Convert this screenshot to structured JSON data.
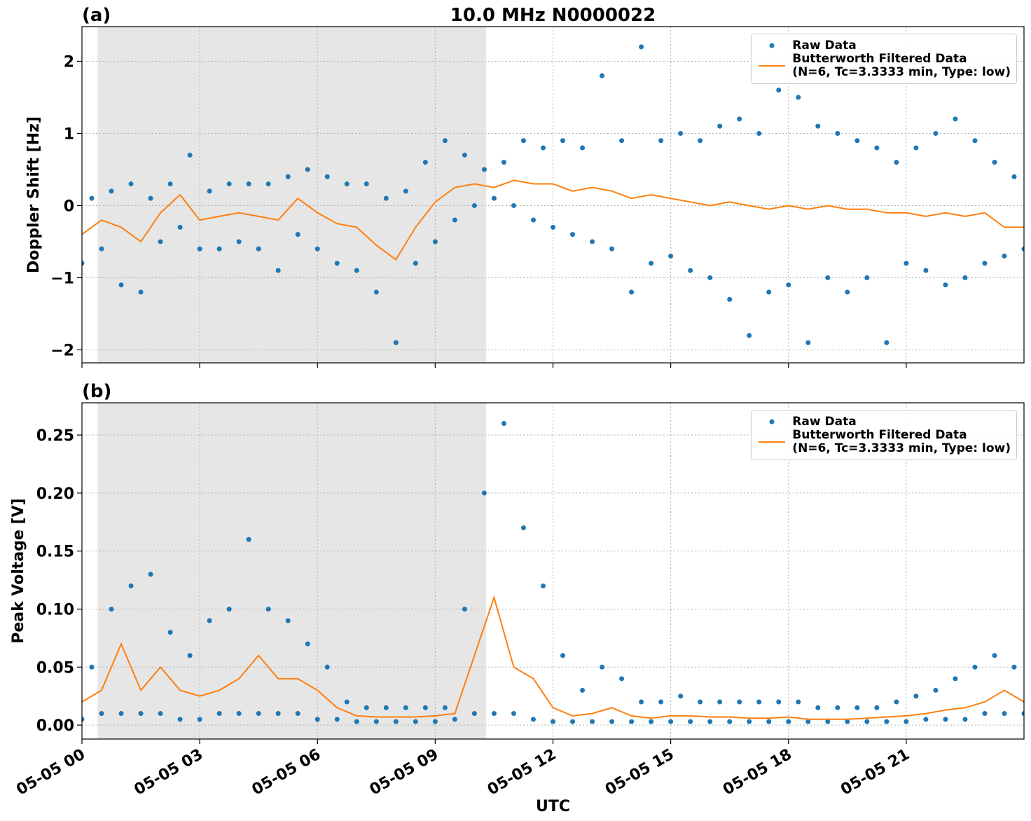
{
  "chart_data": [
    {
      "type": "scatter-line",
      "title": "10.0 MHz N0000022",
      "panel_label": "(a)",
      "ylabel": "Doppler Shift [Hz]",
      "xlim": [
        0,
        24
      ],
      "xticks": [
        0,
        3,
        6,
        9,
        12,
        15,
        18,
        21
      ],
      "ylim": [
        -2.18,
        2.48
      ],
      "yticks": [
        {
          "value": -2,
          "label": "−2"
        },
        {
          "value": -1,
          "label": "−1"
        },
        0,
        1,
        2
      ],
      "grid": true,
      "legend": "upper right",
      "shaded_span": [
        0.4,
        10.3
      ],
      "shade_color": "#e6e6e6",
      "series": [
        {
          "name": "Raw Data",
          "kind": "scatter",
          "color": "#1f77b4",
          "x": [
            0,
            0.25,
            0.5,
            0.75,
            1,
            1.25,
            1.5,
            1.75,
            2,
            2.25,
            2.5,
            2.75,
            3,
            3.25,
            3.5,
            3.75,
            4,
            4.25,
            4.5,
            4.75,
            5,
            5.25,
            5.5,
            5.75,
            6,
            6.25,
            6.5,
            6.75,
            7,
            7.25,
            7.5,
            7.75,
            8,
            8.25,
            8.5,
            8.75,
            9,
            9.25,
            9.5,
            9.75,
            10,
            10.25,
            10.5,
            10.75,
            11,
            11.25,
            11.5,
            11.75,
            12,
            12.25,
            12.5,
            12.75,
            13,
            13.25,
            13.5,
            13.75,
            14,
            14.25,
            14.5,
            14.75,
            15,
            15.25,
            15.5,
            15.75,
            16,
            16.25,
            16.5,
            16.75,
            17,
            17.25,
            17.5,
            17.75,
            18,
            18.25,
            18.5,
            18.75,
            19,
            19.25,
            19.5,
            19.75,
            20,
            20.25,
            20.5,
            20.75,
            21,
            21.25,
            21.5,
            21.75,
            22,
            22.25,
            22.5,
            22.75,
            23,
            23.25,
            23.5,
            23.75,
            24
          ],
          "values": [
            -0.8,
            0.1,
            -0.6,
            0.2,
            -1.1,
            0.3,
            -1.2,
            0.1,
            -0.5,
            0.3,
            -0.3,
            0.7,
            -0.6,
            0.2,
            -0.6,
            0.3,
            -0.5,
            0.3,
            -0.6,
            0.3,
            -0.9,
            0.4,
            -0.4,
            0.5,
            -0.6,
            0.4,
            -0.8,
            0.3,
            -0.9,
            0.3,
            -1.2,
            0.1,
            -1.9,
            0.2,
            -0.8,
            0.6,
            -0.5,
            0.9,
            -0.2,
            0.7,
            0.0,
            0.5,
            0.1,
            0.6,
            0.0,
            0.9,
            -0.2,
            0.8,
            -0.3,
            0.9,
            -0.4,
            0.8,
            -0.5,
            1.8,
            -0.6,
            0.9,
            -1.2,
            2.2,
            -0.8,
            0.9,
            -0.7,
            1.0,
            -0.9,
            0.9,
            -1.0,
            1.1,
            -1.3,
            1.2,
            -1.8,
            1.0,
            -1.2,
            1.6,
            -1.1,
            1.5,
            -1.9,
            1.1,
            -1.0,
            1.0,
            -1.2,
            0.9,
            -1.0,
            0.8,
            -1.9,
            0.6,
            -0.8,
            0.8,
            -0.9,
            1.0,
            -1.1,
            1.2,
            -1.0,
            0.9,
            -0.8,
            0.6,
            -0.7,
            0.4,
            -0.6
          ]
        },
        {
          "name": "Butterworth Filtered Data\n(N=6, Tc=3.3333 min, Type: low)",
          "kind": "line",
          "color": "#ff7f0e",
          "x": [
            0,
            0.5,
            1,
            1.5,
            2,
            2.5,
            3,
            3.5,
            4,
            4.5,
            5,
            5.5,
            6,
            6.5,
            7,
            7.5,
            8,
            8.5,
            9,
            9.5,
            10,
            10.5,
            11,
            11.5,
            12,
            12.5,
            13,
            13.5,
            14,
            14.5,
            15,
            15.5,
            16,
            16.5,
            17,
            17.5,
            18,
            18.5,
            19,
            19.5,
            20,
            20.5,
            21,
            21.5,
            22,
            22.5,
            23,
            23.5,
            24
          ],
          "values": [
            -0.4,
            -0.2,
            -0.3,
            -0.5,
            -0.1,
            0.15,
            -0.2,
            -0.15,
            -0.1,
            -0.15,
            -0.2,
            0.1,
            -0.1,
            -0.25,
            -0.3,
            -0.55,
            -0.75,
            -0.3,
            0.05,
            0.25,
            0.3,
            0.25,
            0.35,
            0.3,
            0.3,
            0.2,
            0.25,
            0.2,
            0.1,
            0.15,
            0.1,
            0.05,
            0.0,
            0.05,
            0.0,
            -0.05,
            0.0,
            -0.05,
            0.0,
            -0.05,
            -0.05,
            -0.1,
            -0.1,
            -0.15,
            -0.1,
            -0.15,
            -0.1,
            -0.3,
            -0.3
          ]
        }
      ]
    },
    {
      "type": "scatter-line",
      "panel_label": "(b)",
      "ylabel": "Peak Voltage [V]",
      "xlabel": "UTC",
      "xlim": [
        0,
        24
      ],
      "xticks": [
        {
          "value": 0,
          "label": "05-05 00"
        },
        {
          "value": 3,
          "label": "05-05 03"
        },
        {
          "value": 6,
          "label": "05-05 06"
        },
        {
          "value": 9,
          "label": "05-05 09"
        },
        {
          "value": 12,
          "label": "05-05 12"
        },
        {
          "value": 15,
          "label": "05-05 15"
        },
        {
          "value": 18,
          "label": "05-05 18"
        },
        {
          "value": 21,
          "label": "05-05 21"
        }
      ],
      "ylim": [
        -0.012,
        0.2778
      ],
      "yticks": [
        {
          "value": 0,
          "label": "0.00"
        },
        0.05,
        {
          "value": 0.1,
          "label": "0.10"
        },
        0.15,
        {
          "value": 0.2,
          "label": "0.20"
        },
        0.25
      ],
      "grid": true,
      "legend": "upper right",
      "shaded_span": [
        0.4,
        10.3
      ],
      "shade_color": "#e6e6e6",
      "series": [
        {
          "name": "Raw Data",
          "kind": "scatter",
          "color": "#1f77b4",
          "x": [
            0,
            0.25,
            0.5,
            0.75,
            1,
            1.25,
            1.5,
            1.75,
            2,
            2.25,
            2.5,
            2.75,
            3,
            3.25,
            3.5,
            3.75,
            4,
            4.25,
            4.5,
            4.75,
            5,
            5.25,
            5.5,
            5.75,
            6,
            6.25,
            6.5,
            6.75,
            7,
            7.25,
            7.5,
            7.75,
            8,
            8.25,
            8.5,
            8.75,
            9,
            9.25,
            9.5,
            9.75,
            10,
            10.25,
            10.5,
            10.75,
            11,
            11.25,
            11.5,
            11.75,
            12,
            12.25,
            12.5,
            12.75,
            13,
            13.25,
            13.5,
            13.75,
            14,
            14.25,
            14.5,
            14.75,
            15,
            15.25,
            15.5,
            15.75,
            16,
            16.25,
            16.5,
            16.75,
            17,
            17.25,
            17.5,
            17.75,
            18,
            18.25,
            18.5,
            18.75,
            19,
            19.25,
            19.5,
            19.75,
            20,
            20.25,
            20.5,
            20.75,
            21,
            21.25,
            21.5,
            21.75,
            22,
            22.25,
            22.5,
            22.75,
            23,
            23.25,
            23.5,
            23.75,
            24
          ],
          "values": [
            0.005,
            0.05,
            0.01,
            0.1,
            0.01,
            0.12,
            0.01,
            0.13,
            0.01,
            0.08,
            0.005,
            0.06,
            0.005,
            0.09,
            0.01,
            0.1,
            0.01,
            0.16,
            0.01,
            0.1,
            0.01,
            0.09,
            0.01,
            0.07,
            0.005,
            0.05,
            0.005,
            0.02,
            0.003,
            0.015,
            0.003,
            0.015,
            0.003,
            0.015,
            0.003,
            0.015,
            0.003,
            0.015,
            0.005,
            0.1,
            0.01,
            0.2,
            0.01,
            0.26,
            0.01,
            0.17,
            0.005,
            0.12,
            0.003,
            0.06,
            0.003,
            0.03,
            0.003,
            0.05,
            0.003,
            0.04,
            0.003,
            0.02,
            0.003,
            0.02,
            0.003,
            0.025,
            0.003,
            0.02,
            0.003,
            0.02,
            0.003,
            0.02,
            0.003,
            0.02,
            0.003,
            0.02,
            0.003,
            0.02,
            0.003,
            0.015,
            0.003,
            0.015,
            0.003,
            0.015,
            0.003,
            0.015,
            0.003,
            0.02,
            0.003,
            0.025,
            0.005,
            0.03,
            0.005,
            0.04,
            0.005,
            0.05,
            0.01,
            0.06,
            0.01,
            0.05,
            0.01
          ]
        },
        {
          "name": "Butterworth Filtered Data\n(N=6, Tc=3.3333 min, Type: low)",
          "kind": "line",
          "color": "#ff7f0e",
          "x": [
            0,
            0.5,
            1,
            1.5,
            2,
            2.5,
            3,
            3.5,
            4,
            4.5,
            5,
            5.5,
            6,
            6.5,
            7,
            7.5,
            8,
            8.5,
            9,
            9.5,
            10,
            10.5,
            11,
            11.5,
            12,
            12.5,
            13,
            13.5,
            14,
            14.5,
            15,
            15.5,
            16,
            16.5,
            17,
            17.5,
            18,
            18.5,
            19,
            19.5,
            20,
            20.5,
            21,
            21.5,
            22,
            22.5,
            23,
            23.5,
            24
          ],
          "values": [
            0.02,
            0.03,
            0.07,
            0.03,
            0.05,
            0.03,
            0.025,
            0.03,
            0.04,
            0.06,
            0.04,
            0.04,
            0.03,
            0.015,
            0.008,
            0.007,
            0.007,
            0.007,
            0.008,
            0.01,
            0.06,
            0.11,
            0.05,
            0.04,
            0.015,
            0.008,
            0.01,
            0.015,
            0.008,
            0.006,
            0.008,
            0.008,
            0.007,
            0.007,
            0.006,
            0.006,
            0.007,
            0.005,
            0.005,
            0.005,
            0.006,
            0.007,
            0.008,
            0.01,
            0.013,
            0.015,
            0.02,
            0.03,
            0.02
          ]
        }
      ]
    }
  ]
}
